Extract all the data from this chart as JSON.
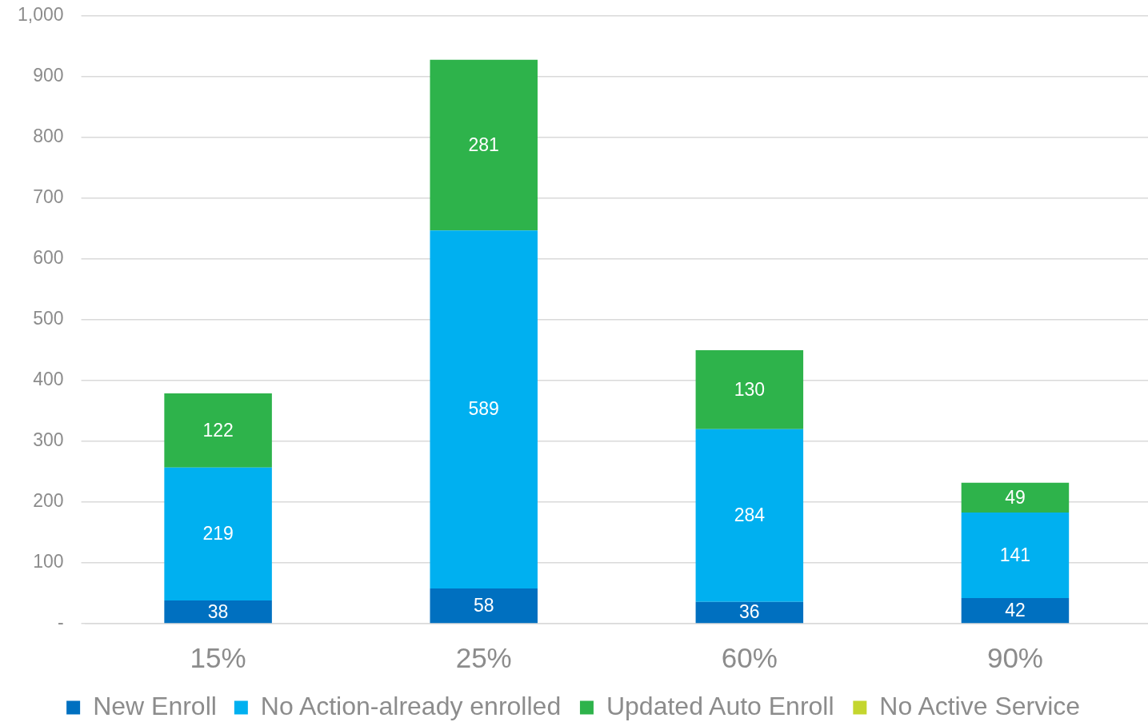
{
  "chart_data": {
    "type": "bar",
    "stacked": true,
    "categories": [
      "15%",
      "25%",
      "60%",
      "90%"
    ],
    "series": [
      {
        "name": "New Enroll",
        "color": "#0070c0",
        "values": [
          38,
          58,
          36,
          42
        ],
        "value_labels": [
          "38",
          "58",
          "36",
          "42"
        ]
      },
      {
        "name": "No Action-already enrolled",
        "color": "#00b0f0",
        "values": [
          219,
          589,
          284,
          141
        ],
        "value_labels": [
          "219",
          "589",
          "284",
          "141"
        ]
      },
      {
        "name": "Updated Auto Enroll",
        "color": "#2eb34b",
        "values": [
          122,
          281,
          130,
          49
        ],
        "value_labels": [
          "122",
          "281",
          "130",
          "49"
        ]
      },
      {
        "name": "No Active Service",
        "color": "#c4d62e",
        "values": [
          0,
          0,
          0,
          0
        ]
      }
    ],
    "ylim": [
      0,
      1000
    ],
    "yticks": [
      {
        "value": 0,
        "label": "-"
      },
      100,
      200,
      300,
      400,
      500,
      600,
      700,
      800,
      900,
      {
        "value": 1000,
        "label": "1,000"
      }
    ],
    "grid": "y",
    "legend": "bottom"
  }
}
